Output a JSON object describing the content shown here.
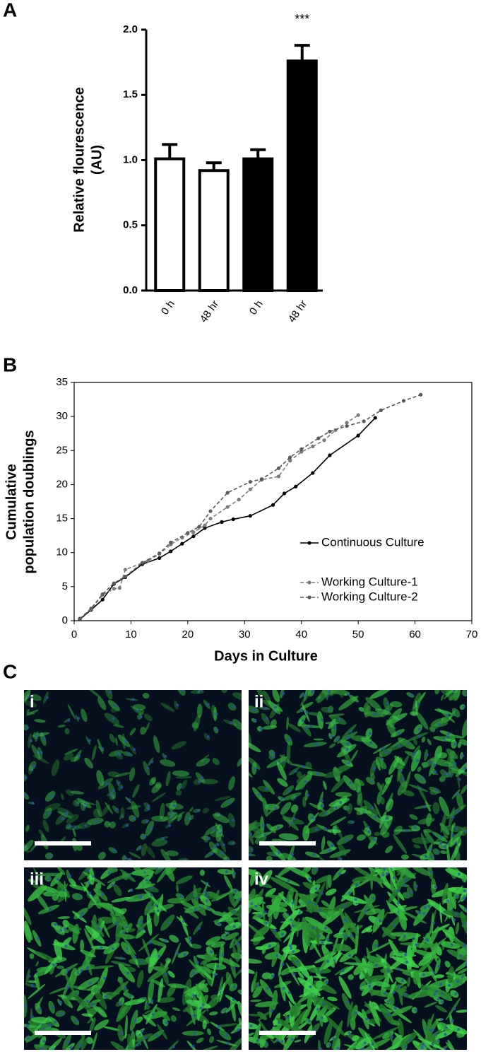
{
  "panel_labels": [
    "A",
    "B",
    "C"
  ],
  "chart_data": [
    {
      "type": "bar",
      "y_label": [
        "Relative flourescence",
        "(AU)"
      ],
      "categories": [
        "0 h",
        "48 hr",
        "0 h",
        "48 hr"
      ],
      "values": [
        1.01,
        0.92,
        1.01,
        1.76
      ],
      "errors": [
        0.11,
        0.06,
        0.07,
        0.12
      ],
      "colors": [
        "#ffffff",
        "#ffffff",
        "#000000",
        "#000000"
      ],
      "annotations": [
        null,
        null,
        null,
        "***"
      ],
      "ylim": [
        0,
        2
      ],
      "yticks": [
        {
          "value": 0,
          "label": "0.0"
        },
        {
          "value": 0.5,
          "label": "0.5"
        },
        {
          "value": 1,
          "label": "1.0"
        },
        {
          "value": 1.5,
          "label": "1.5"
        },
        {
          "value": 2,
          "label": "2.0"
        }
      ]
    },
    {
      "type": "line",
      "x_label": "Days in Culture",
      "y_label": [
        "Cumulative",
        "population doublings"
      ],
      "xlim": [
        0,
        70
      ],
      "xticks": [
        0,
        10,
        20,
        30,
        40,
        50,
        60,
        70
      ],
      "ylim": [
        0,
        35
      ],
      "yticks": [
        0,
        5,
        10,
        15,
        20,
        25,
        30,
        35
      ],
      "legend": "right",
      "series": [
        {
          "name": "Continuous Culture",
          "color": "#000000",
          "line_style": "solid",
          "x": [
            1,
            3,
            5,
            7,
            9,
            12,
            15,
            17,
            19,
            21,
            23,
            26,
            28,
            31,
            35,
            37,
            39,
            42,
            45,
            50,
            53
          ],
          "values": [
            0.2,
            1.6,
            3.1,
            5.4,
            6.4,
            8.3,
            9.2,
            10.2,
            11.3,
            12.4,
            13.6,
            14.5,
            14.9,
            15.4,
            17.0,
            18.7,
            19.7,
            21.7,
            24.3,
            27.2,
            29.8
          ]
        },
        {
          "name": "Working Culture-1",
          "color": "#7a7a7a",
          "line_style": "dashed",
          "x": [
            1,
            3,
            5,
            7,
            8,
            9,
            13,
            15,
            17,
            19,
            21,
            23,
            24,
            27,
            29,
            31,
            33,
            36,
            38,
            40,
            42,
            44,
            46,
            48,
            50
          ],
          "values": [
            0.3,
            1.7,
            3.8,
            4.7,
            4.8,
            7.5,
            8.8,
            9.8,
            11.2,
            12.2,
            13.0,
            14.0,
            15.0,
            16.7,
            17.8,
            19.3,
            20.7,
            21.2,
            23.5,
            24.8,
            25.6,
            26.5,
            28.0,
            29.1,
            30.2
          ]
        },
        {
          "name": "Working Culture-2",
          "color": "#5a5a5a",
          "line_style": "dashed",
          "x": [
            1,
            3,
            5,
            7,
            9,
            12,
            15,
            17,
            20,
            22,
            24,
            27,
            31,
            33,
            36,
            38,
            40,
            43,
            45,
            48,
            51,
            54,
            58,
            61
          ],
          "values": [
            0.3,
            1.8,
            3.9,
            5.5,
            6.5,
            8.5,
            9.9,
            11.5,
            12.9,
            13.8,
            16.1,
            18.8,
            20.4,
            20.8,
            22.4,
            24.0,
            25.2,
            26.8,
            27.8,
            28.6,
            29.3,
            30.9,
            32.3,
            33.2
          ]
        }
      ]
    }
  ],
  "micrographs": [
    {
      "label": "i"
    },
    {
      "label": "ii"
    },
    {
      "label": "iii"
    },
    {
      "label": "iv"
    }
  ]
}
